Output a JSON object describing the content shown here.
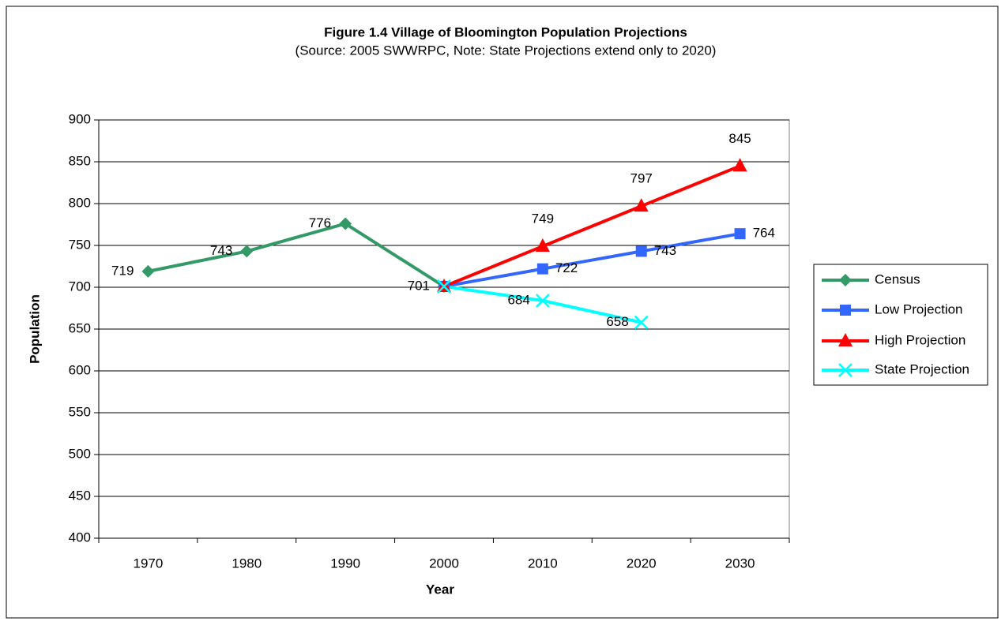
{
  "chart_data": {
    "type": "line",
    "title": "Figure 1.4 Village of Bloomington Population Projections",
    "subtitle": "(Source:  2005 SWWRPC, Note:  State Projections extend only to 2020)",
    "x_label": "Year",
    "y_label": "Population",
    "categories": [
      "1970",
      "1980",
      "1990",
      "2000",
      "2010",
      "2020",
      "2030"
    ],
    "series": [
      {
        "name": "Census",
        "color": "#339966",
        "values": [
          719,
          743,
          776,
          701,
          null,
          null,
          null
        ]
      },
      {
        "name": "Low Projection",
        "color": "#3366ff",
        "values": [
          null,
          null,
          null,
          701,
          722,
          743,
          764
        ]
      },
      {
        "name": "High Projection",
        "color": "#ff0000",
        "values": [
          null,
          null,
          null,
          701,
          749,
          797,
          845
        ]
      },
      {
        "name": "State Projection",
        "color": "#00ffff",
        "values": [
          null,
          null,
          null,
          701,
          684,
          658,
          null
        ]
      }
    ],
    "ylim": [
      400,
      900
    ],
    "yticks": [
      400,
      450,
      500,
      550,
      600,
      650,
      700,
      750,
      800,
      850,
      900
    ],
    "grid": true,
    "legend": "right"
  }
}
